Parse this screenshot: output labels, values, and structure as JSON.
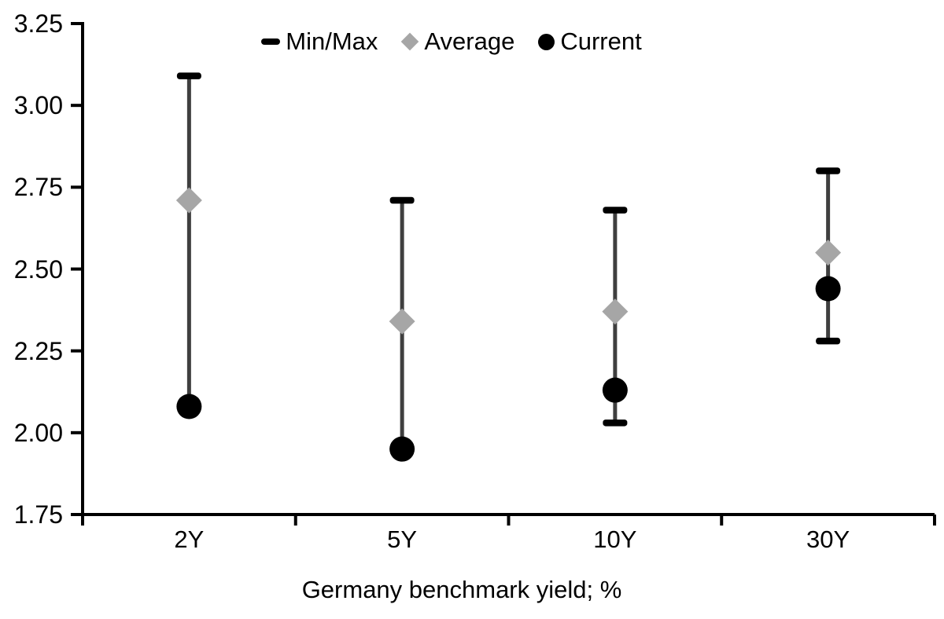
{
  "chart_data": {
    "type": "scatter",
    "title": "",
    "xlabel": "Germany benchmark yield; %",
    "ylabel": "",
    "categories": [
      "2Y",
      "5Y",
      "10Y",
      "30Y"
    ],
    "series": [
      {
        "name": "Min/Max",
        "marker": "dash",
        "min": [
          2.08,
          1.95,
          2.03,
          2.28
        ],
        "max": [
          3.09,
          2.71,
          2.68,
          2.8
        ]
      },
      {
        "name": "Average",
        "marker": "diamond",
        "values": [
          2.71,
          2.34,
          2.37,
          2.55
        ]
      },
      {
        "name": "Current",
        "marker": "circle",
        "values": [
          2.08,
          1.95,
          2.13,
          2.44
        ]
      }
    ],
    "ylim": [
      1.75,
      3.25
    ],
    "ytick_labels": [
      "3.25",
      "3.00",
      "2.75",
      "2.50",
      "2.25",
      "2.00",
      "1.75"
    ],
    "grid": false,
    "legend_position": "top-center"
  },
  "colors": {
    "axis": "#000000",
    "range_line": "#3f3f3f",
    "cap": "#000000",
    "average": "#a6a6a6",
    "current": "#000000",
    "text": "#000000",
    "background": "#ffffff"
  }
}
